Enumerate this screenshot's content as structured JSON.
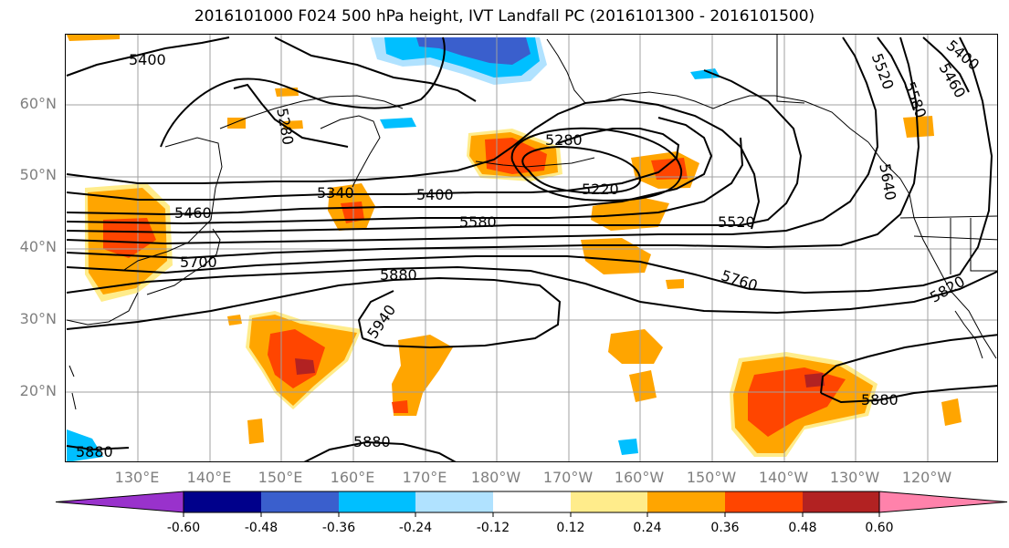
{
  "title": "2016101000 F024 500 hPa height, IVT Landfall PC (2016101300 - 2016101500)",
  "lat_labels": [
    "60°N",
    "50°N",
    "40°N",
    "30°N",
    "20°N"
  ],
  "lon_labels": [
    "130°E",
    "140°E",
    "150°E",
    "160°E",
    "170°E",
    "180°W",
    "170°W",
    "160°W",
    "150°W",
    "140°W",
    "130°W",
    "120°W"
  ],
  "contour_labels": [
    "5400",
    "5280",
    "5340",
    "5400",
    "5460",
    "5580",
    "5520",
    "5700",
    "5880",
    "5760",
    "5940",
    "5220",
    "5280",
    "5820",
    "5880",
    "5880",
    "5880",
    "5520",
    "5580",
    "5400",
    "5460",
    "5640"
  ],
  "colorbar": {
    "tick_labels": [
      "-0.60",
      "-0.48",
      "-0.36",
      "-0.24",
      "-0.12",
      "0.12",
      "0.24",
      "0.36",
      "0.48",
      "0.60"
    ],
    "colors": [
      "#9932cc",
      "#00008b",
      "#3a5fcd",
      "#00bfff",
      "#b0e2ff",
      "#ffffff",
      "#ffec8b",
      "#ffa500",
      "#ff4500",
      "#b22222",
      "#ff82ab"
    ]
  },
  "map_colors": {
    "positive_light": "#ffec8b",
    "positive_mid": "#ffa500",
    "positive_high": "#ff4500",
    "positive_max": "#b22222",
    "negative_light": "#b0e2ff",
    "negative_mid": "#00bfff",
    "negative_high": "#3a5fcd",
    "grid": "#a0a0a0",
    "contour": "#000000"
  }
}
